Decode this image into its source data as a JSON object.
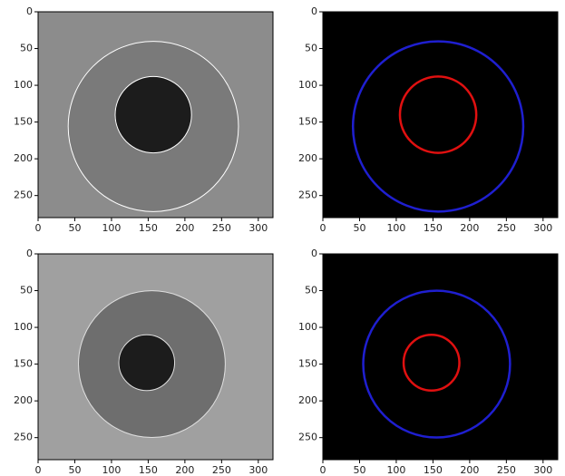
{
  "chart_data": [
    {
      "type": "image",
      "background": "#8c8c8c",
      "xlim": [
        0,
        320
      ],
      "ylim": [
        280,
        0
      ],
      "xticks": [
        0,
        50,
        100,
        150,
        200,
        250,
        300
      ],
      "yticks": [
        0,
        50,
        100,
        150,
        200,
        250
      ],
      "circles": [
        {
          "center_x": 157,
          "center_y": 156,
          "radius": 116,
          "color": "#ffffff",
          "fill": "#7a7a7a"
        },
        {
          "center_x": 157,
          "center_y": 140,
          "radius": 52,
          "color": "#ffffff",
          "fill": "#1c1c1c"
        }
      ]
    },
    {
      "type": "image",
      "background": "#000000",
      "xlim": [
        0,
        320
      ],
      "ylim": [
        280,
        0
      ],
      "xticks": [
        0,
        50,
        100,
        150,
        200,
        250,
        300
      ],
      "yticks": [
        0,
        50,
        100,
        150,
        200,
        250
      ],
      "circles": [
        {
          "center_x": 157,
          "center_y": 156,
          "radius": 116,
          "color": "#1f1fd0",
          "fill": "none"
        },
        {
          "center_x": 157,
          "center_y": 140,
          "radius": 52,
          "color": "#e01010",
          "fill": "none"
        }
      ]
    },
    {
      "type": "image",
      "background": "#a0a0a0",
      "xlim": [
        0,
        320
      ],
      "ylim": [
        280,
        0
      ],
      "xticks": [
        0,
        50,
        100,
        150,
        200,
        250,
        300
      ],
      "yticks": [
        0,
        50,
        100,
        150,
        200,
        250
      ],
      "circles": [
        {
          "center_x": 155,
          "center_y": 150,
          "radius": 100,
          "color": "#e0e0e0",
          "fill": "#6e6e6e"
        },
        {
          "center_x": 148,
          "center_y": 148,
          "radius": 38,
          "color": "#e0e0e0",
          "fill": "#1c1c1c"
        }
      ]
    },
    {
      "type": "image",
      "background": "#000000",
      "xlim": [
        0,
        320
      ],
      "ylim": [
        280,
        0
      ],
      "xticks": [
        0,
        50,
        100,
        150,
        200,
        250,
        300
      ],
      "yticks": [
        0,
        50,
        100,
        150,
        200,
        250
      ],
      "circles": [
        {
          "center_x": 155,
          "center_y": 150,
          "radius": 100,
          "color": "#1f1fd0",
          "fill": "none"
        },
        {
          "center_x": 148,
          "center_y": 148,
          "radius": 38,
          "color": "#e01010",
          "fill": "none"
        }
      ]
    }
  ]
}
